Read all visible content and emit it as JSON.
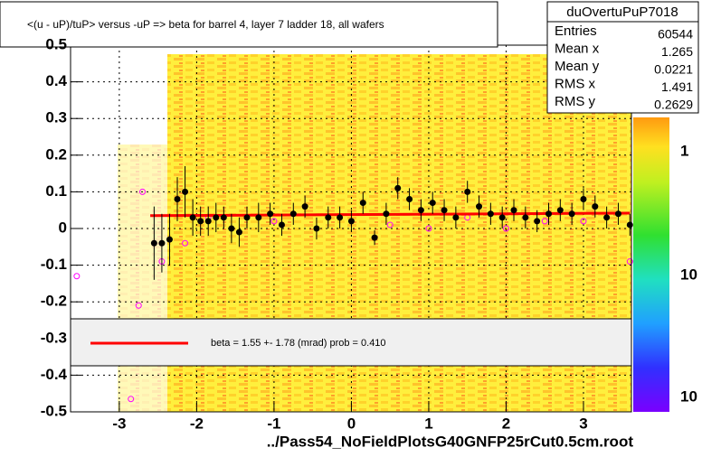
{
  "chart_data": {
    "type": "profile",
    "title": "<(u - uP)/tuP> versus  -uP => beta for barrel 4, layer 7 ladder 18, all wafers",
    "xlabel": "../Pass54_NoFieldPlotsG40GNFP25rCut0.5cm.root",
    "xlim": [
      -3.63,
      3.62
    ],
    "ylim": [
      -0.5,
      0.5
    ],
    "xticks": [
      -3,
      -2,
      -1,
      0,
      1,
      2,
      3
    ],
    "yticks": [
      -0.5,
      -0.4,
      -0.3,
      -0.2,
      -0.1,
      0,
      0.1,
      0.2,
      0.3,
      0.4,
      0.5
    ],
    "grid": true,
    "points": {
      "color": "#000000",
      "x": [
        -2.55,
        -2.45,
        -2.35,
        -2.25,
        -2.15,
        -2.05,
        -1.95,
        -1.85,
        -1.75,
        -1.65,
        -1.55,
        -1.45,
        -1.35,
        -1.2,
        -1.05,
        -0.9,
        -0.75,
        -0.6,
        -0.45,
        -0.3,
        -0.15,
        0,
        0.15,
        0.3,
        0.45,
        0.6,
        0.75,
        0.9,
        1.05,
        1.2,
        1.35,
        1.5,
        1.65,
        1.8,
        1.95,
        2.1,
        2.25,
        2.4,
        2.55,
        2.7,
        2.85,
        3.0,
        3.15,
        3.3,
        3.45,
        3.6
      ],
      "y": [
        -0.04,
        -0.04,
        -0.03,
        0.08,
        0.1,
        0.03,
        0.02,
        0.02,
        0.03,
        0.03,
        0.0,
        -0.01,
        0.03,
        0.03,
        0.04,
        0.01,
        0.04,
        0.06,
        0.0,
        0.03,
        0.03,
        0.02,
        0.07,
        -0.025,
        0.04,
        0.11,
        0.08,
        0.05,
        0.07,
        0.05,
        0.03,
        0.1,
        0.06,
        0.04,
        0.03,
        0.05,
        0.03,
        0.02,
        0.04,
        0.05,
        0.04,
        0.08,
        0.06,
        0.03,
        0.04,
        0.01
      ],
      "err": [
        0.1,
        0.08,
        0.07,
        0.06,
        0.07,
        0.05,
        0.04,
        0.04,
        0.04,
        0.03,
        0.04,
        0.04,
        0.03,
        0.04,
        0.03,
        0.03,
        0.03,
        0.03,
        0.03,
        0.03,
        0.03,
        0.03,
        0.03,
        0.02,
        0.03,
        0.03,
        0.03,
        0.03,
        0.03,
        0.03,
        0.03,
        0.03,
        0.03,
        0.03,
        0.03,
        0.03,
        0.03,
        0.03,
        0.03,
        0.03,
        0.03,
        0.03,
        0.03,
        0.03,
        0.03,
        0.03
      ]
    },
    "open_points": {
      "color": "#ff00ff",
      "x": [
        -3.55,
        -2.85,
        -2.75,
        -2.7,
        -2.45,
        -2.15,
        -1.85,
        -1.0,
        0.5,
        1.0,
        1.5,
        2.0,
        2.5,
        3.0,
        3.6
      ],
      "y": [
        -0.13,
        -0.465,
        -0.21,
        0.1,
        -0.09,
        -0.04,
        0.03,
        0.02,
        0.01,
        0.0,
        0.03,
        0.0,
        0.02,
        0.02,
        -0.09
      ]
    },
    "fit": {
      "color": "#ff0000",
      "x": [
        -2.6,
        3.6
      ],
      "y": [
        0.035,
        0.042
      ],
      "legend": "beta =    1.55 +-  1.78 (mrad) prob = 0.410"
    },
    "stats": {
      "title": "duOvertuPuP7018",
      "rows": [
        {
          "label": "Entries",
          "value": 60544
        },
        {
          "label": "Mean x",
          "value": 1.265
        },
        {
          "label": "Mean y",
          "value": 0.0221
        },
        {
          "label": "RMS x",
          "value": 1.491
        },
        {
          "label": "RMS y",
          "value": 0.2629
        }
      ]
    },
    "colorbar_labels": [
      "1",
      "10",
      "10"
    ]
  }
}
